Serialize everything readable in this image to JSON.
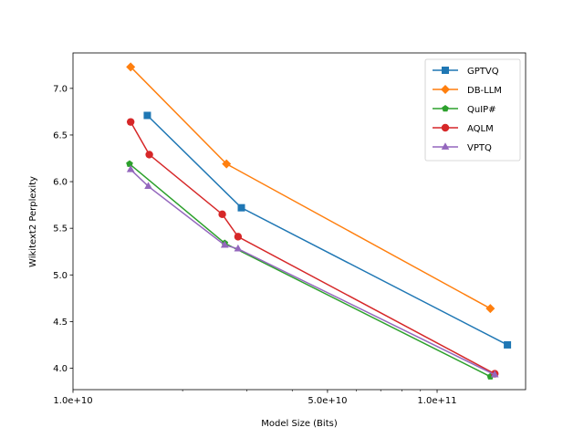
{
  "chart_data": {
    "type": "line",
    "title": "",
    "xlabel": "Model Size (Bits)",
    "ylabel": "Wikitext2 Perplexity",
    "xscale": "log",
    "xlim": [
      10000000000,
      175000000000
    ],
    "ylim": [
      3.77,
      7.38
    ],
    "x_ticks": [
      {
        "value": 10000000000,
        "label": "1.0e+10"
      },
      {
        "value": 50000000000,
        "label": "5.0e+10"
      },
      {
        "value": 100000000000,
        "label": "1.0e+11"
      }
    ],
    "y_ticks": [
      {
        "value": 4.0,
        "label": "4.0"
      },
      {
        "value": 4.5,
        "label": "4.5"
      },
      {
        "value": 5.0,
        "label": "5.0"
      },
      {
        "value": 5.5,
        "label": "5.5"
      },
      {
        "value": 6.0,
        "label": "6.0"
      },
      {
        "value": 6.5,
        "label": "6.5"
      },
      {
        "value": 7.0,
        "label": "7.0"
      }
    ],
    "legend_position": "top-right",
    "series": [
      {
        "name": "GPTVQ",
        "color": "#1f77b4",
        "marker": "square",
        "x": [
          16000000000,
          29000000000,
          156000000000
        ],
        "y": [
          6.71,
          5.72,
          4.25
        ]
      },
      {
        "name": "DB-LLM",
        "color": "#ff7f0e",
        "marker": "diamond",
        "x": [
          14400000000,
          26400000000,
          140000000000
        ],
        "y": [
          7.23,
          6.19,
          4.64
        ]
      },
      {
        "name": "QuIP#",
        "color": "#2ca02c",
        "marker": "pentagon",
        "x": [
          14300000000,
          26100000000,
          140000000000
        ],
        "y": [
          6.19,
          5.34,
          3.91
        ]
      },
      {
        "name": "AQLM",
        "color": "#d62728",
        "marker": "circle",
        "x": [
          14400000000,
          16200000000,
          25700000000,
          28400000000,
          144000000000
        ],
        "y": [
          6.64,
          6.29,
          5.65,
          5.41,
          3.94
        ]
      },
      {
        "name": "VPTQ",
        "color": "#9467bd",
        "marker": "triangle",
        "x": [
          14400000000,
          16100000000,
          26100000000,
          28400000000,
          144000000000
        ],
        "y": [
          6.13,
          5.95,
          5.32,
          5.28,
          3.93
        ]
      }
    ]
  }
}
